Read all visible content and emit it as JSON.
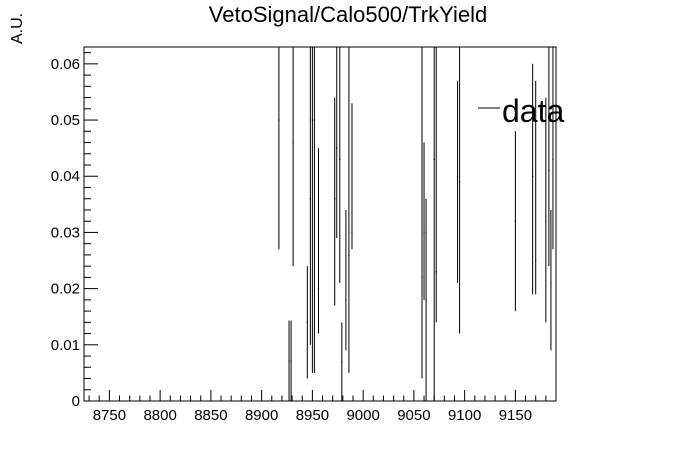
{
  "chart_data": {
    "type": "scatter",
    "title": "VetoSignal/Calo500/TrkYield",
    "xlabel": "",
    "ylabel": "A.U.",
    "xlim": [
      8725,
      9190
    ],
    "ylim": [
      0,
      0.063
    ],
    "x_ticks": [
      8750,
      8800,
      8850,
      8900,
      8950,
      9000,
      9050,
      9100,
      9150
    ],
    "y_ticks": [
      0,
      0.01,
      0.02,
      0.03,
      0.04,
      0.05,
      0.06
    ],
    "y_tick_labels": [
      "0",
      "0.01",
      "0.02",
      "0.03",
      "0.04",
      "0.05",
      "0.06"
    ],
    "legend": {
      "position": "top-right",
      "entries": [
        {
          "label": "data"
        }
      ]
    },
    "series": [
      {
        "name": "data",
        "points": [
          {
            "x": 8917,
            "y": 0.05,
            "lo": 0.027,
            "hi": 0.063
          },
          {
            "x": 8927,
            "y": 0.0071,
            "lo": 0.0,
            "hi": 0.0143
          },
          {
            "x": 8929,
            "y": 0.0071,
            "lo": 0.0,
            "hi": 0.0143
          },
          {
            "x": 8931,
            "y": 0.046,
            "lo": 0.024,
            "hi": 0.063
          },
          {
            "x": 8945,
            "y": 0.014,
            "lo": 0.004,
            "hi": 0.024
          },
          {
            "x": 8948,
            "y": 0.036,
            "lo": 0.01,
            "hi": 0.063
          },
          {
            "x": 8950,
            "y": 0.05,
            "lo": 0.005,
            "hi": 0.063
          },
          {
            "x": 8952,
            "y": 0.05,
            "lo": 0.005,
            "hi": 0.063
          },
          {
            "x": 8956,
            "y": 0.02,
            "lo": 0.012,
            "hi": 0.045
          },
          {
            "x": 8972,
            "y": 0.036,
            "lo": 0.017,
            "hi": 0.054
          },
          {
            "x": 8974,
            "y": 0.045,
            "lo": 0.029,
            "hi": 0.063
          },
          {
            "x": 8977,
            "y": 0.043,
            "lo": 0.021,
            "hi": 0.063
          },
          {
            "x": 8979,
            "y": 0.007,
            "lo": 0.0,
            "hi": 0.014
          },
          {
            "x": 8983,
            "y": 0.018,
            "lo": 0.009,
            "hi": 0.034
          },
          {
            "x": 8986,
            "y": 0.026,
            "lo": 0.005,
            "hi": 0.063
          },
          {
            "x": 8989,
            "y": 0.03,
            "lo": 0.027,
            "hi": 0.053
          },
          {
            "x": 9058,
            "y": 0.022,
            "lo": 0.004,
            "hi": 0.063
          },
          {
            "x": 9060,
            "y": 0.03,
            "lo": 0.018,
            "hi": 0.046
          },
          {
            "x": 9062,
            "y": 0.018,
            "lo": 0.0,
            "hi": 0.036
          },
          {
            "x": 9070,
            "y": 0.043,
            "lo": 0.0,
            "hi": 0.063
          },
          {
            "x": 9072,
            "y": 0.023,
            "lo": 0.014,
            "hi": 0.063
          },
          {
            "x": 9093,
            "y": 0.04,
            "lo": 0.021,
            "hi": 0.057
          },
          {
            "x": 9095,
            "y": 0.039,
            "lo": 0.012,
            "hi": 0.063
          },
          {
            "x": 9150,
            "y": 0.032,
            "lo": 0.016,
            "hi": 0.048
          },
          {
            "x": 9167,
            "y": 0.04,
            "lo": 0.019,
            "hi": 0.06
          },
          {
            "x": 9170,
            "y": 0.025,
            "lo": 0.019,
            "hi": 0.057
          },
          {
            "x": 9180,
            "y": 0.032,
            "lo": 0.014,
            "hi": 0.054
          },
          {
            "x": 9183,
            "y": 0.041,
            "lo": 0.024,
            "hi": 0.063
          },
          {
            "x": 9185,
            "y": 0.021,
            "lo": 0.009,
            "hi": 0.034
          },
          {
            "x": 9187,
            "y": 0.043,
            "lo": 0.027,
            "hi": 0.063
          }
        ]
      }
    ],
    "grid": false
  }
}
